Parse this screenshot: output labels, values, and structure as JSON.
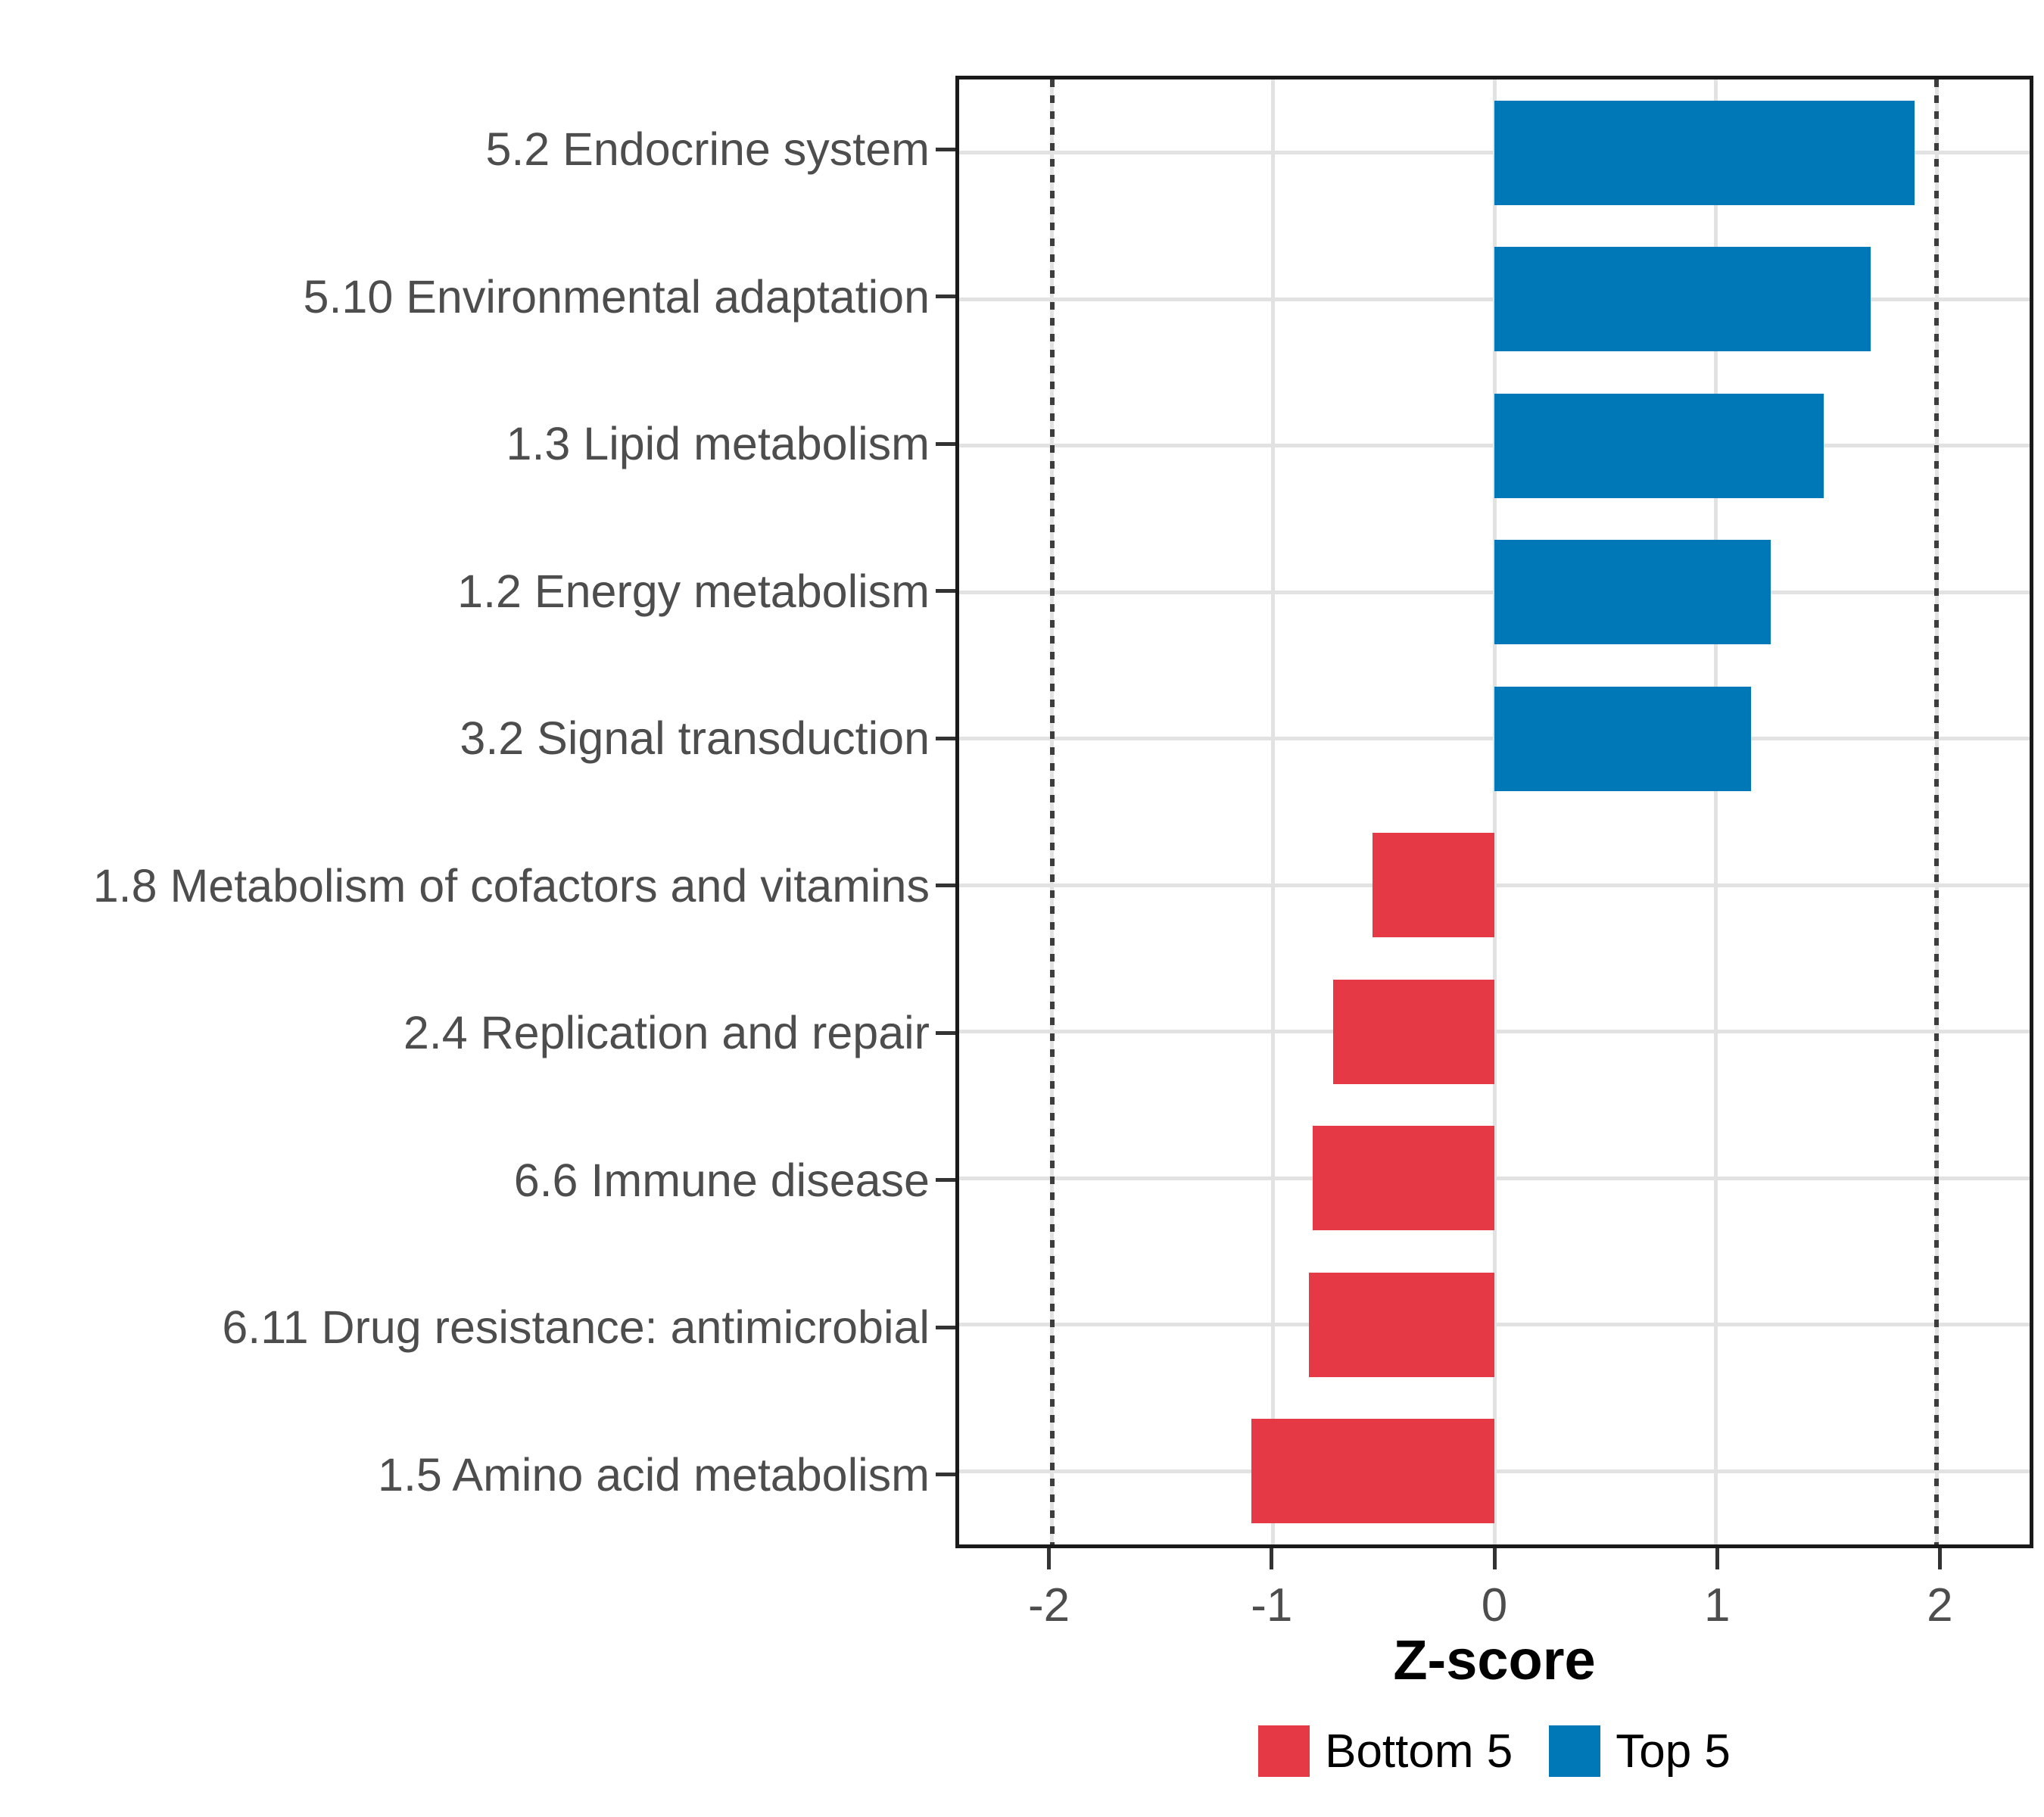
{
  "chart_data": {
    "type": "bar",
    "orientation": "horizontal",
    "title": "",
    "xlabel": "Z-score",
    "ylabel": "",
    "xlim": [
      -2.42,
      2.42
    ],
    "x_tick_values": [
      -2,
      -1,
      0,
      1,
      2
    ],
    "x_tick_labels": [
      "-2",
      "-1",
      "0",
      "1",
      "2"
    ],
    "reference_lines": [
      -2,
      2
    ],
    "grid": true,
    "legend_position": "bottom",
    "categories": [
      "5.2 Endocrine system",
      "5.10 Environmental adaptation",
      "1.3 Lipid metabolism",
      "1.2 Energy metabolism",
      "3.2 Signal transduction",
      "1.8 Metabolism of cofactors and vitamins",
      "2.4 Replication and repair",
      "6.6 Immune disease",
      "6.11 Drug resistance: antimicrobial",
      "1.5 Amino acid metabolism"
    ],
    "values": [
      1.9,
      1.7,
      1.49,
      1.25,
      1.16,
      -0.55,
      -0.73,
      -0.82,
      -0.84,
      -1.1
    ],
    "value_groups": [
      "Top 5",
      "Top 5",
      "Top 5",
      "Top 5",
      "Top 5",
      "Bottom 5",
      "Bottom 5",
      "Bottom 5",
      "Bottom 5",
      "Bottom 5"
    ],
    "colors": {
      "top": "#0077B6",
      "bottom": "#E63946"
    },
    "legend": [
      {
        "label": "Bottom 5",
        "color": "#E63946"
      },
      {
        "label": "Top 5",
        "color": "#0077B6"
      }
    ],
    "style": {
      "panel_border_color": "#1a1a1a",
      "gridline_color": "#e2e2e2",
      "reference_line_color": "#3d3d3d",
      "axis_text_color": "#4d4d4d",
      "tick_color": "#333333"
    }
  }
}
